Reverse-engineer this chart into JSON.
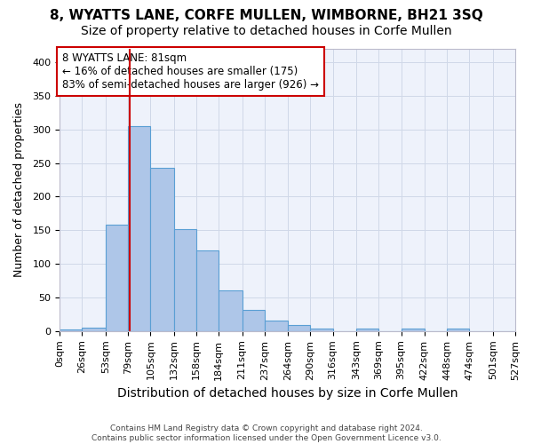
{
  "title": "8, WYATTS LANE, CORFE MULLEN, WIMBORNE, BH21 3SQ",
  "subtitle": "Size of property relative to detached houses in Corfe Mullen",
  "xlabel": "Distribution of detached houses by size in Corfe Mullen",
  "ylabel": "Number of detached properties",
  "bar_edges": [
    0,
    26,
    53,
    79,
    105,
    132,
    158,
    184,
    211,
    237,
    264,
    290,
    316,
    343,
    369,
    395,
    422,
    448,
    474,
    501,
    527
  ],
  "bar_heights": [
    2,
    5,
    158,
    305,
    243,
    152,
    120,
    60,
    32,
    15,
    9,
    4,
    0,
    4,
    0,
    4,
    0,
    4,
    0,
    0
  ],
  "tick_labels": [
    "0sqm",
    "26sqm",
    "53sqm",
    "79sqm",
    "105sqm",
    "132sqm",
    "158sqm",
    "184sqm",
    "211sqm",
    "237sqm",
    "264sqm",
    "290sqm",
    "316sqm",
    "343sqm",
    "369sqm",
    "395sqm",
    "422sqm",
    "448sqm",
    "474sqm",
    "501sqm",
    "527sqm"
  ],
  "bar_color": "#aec6e8",
  "bar_edge_color": "#5a9fd4",
  "vline_x": 81,
  "vline_color": "#cc0000",
  "annotation_text": "8 WYATTS LANE: 81sqm\n← 16% of detached houses are smaller (175)\n83% of semi-detached houses are larger (926) →",
  "annotation_box_color": "#ffffff",
  "annotation_box_edge": "#cc0000",
  "ylim": [
    0,
    420
  ],
  "yticks": [
    0,
    50,
    100,
    150,
    200,
    250,
    300,
    350,
    400
  ],
  "grid_color": "#d0d8e8",
  "bg_color": "#eef2fb",
  "footer_text": "Contains HM Land Registry data © Crown copyright and database right 2024.\nContains public sector information licensed under the Open Government Licence v3.0.",
  "title_fontsize": 11,
  "subtitle_fontsize": 10,
  "xlabel_fontsize": 10,
  "ylabel_fontsize": 9,
  "tick_fontsize": 8
}
